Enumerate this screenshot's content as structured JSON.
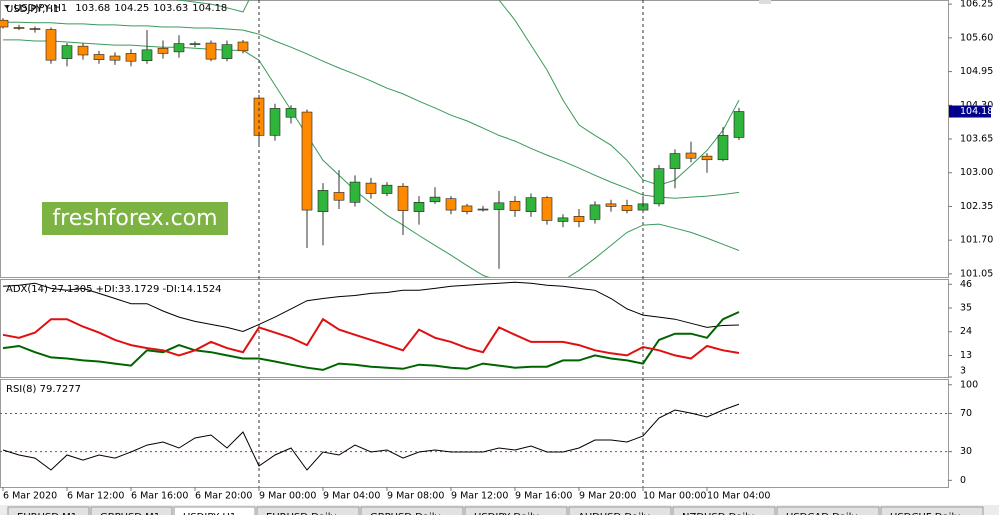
{
  "chart_data": [
    {
      "type": "candlestick",
      "title": "USDJPY,H1",
      "up_color": "#2fb53c",
      "down_color": "#ff8a00",
      "band_color": "#3a9a5a",
      "categories": [
        "6 Mar 2020",
        null,
        null,
        null,
        "6 Mar 12:00",
        null,
        null,
        null,
        "6 Mar 16:00",
        null,
        null,
        null,
        "6 Mar 20:00",
        null,
        null,
        null,
        "9 Mar 00:00",
        null,
        null,
        null,
        "9 Mar 04:00",
        null,
        null,
        null,
        "9 Mar 08:00",
        null,
        null,
        null,
        "9 Mar 12:00",
        null,
        null,
        null,
        "9 Mar 16:00",
        null,
        null,
        null,
        "9 Mar 20:00",
        null,
        null,
        null,
        "10 Mar 00:00",
        null,
        null,
        null,
        "10 Mar 04:00",
        null,
        null
      ],
      "open": [
        105.94,
        105.8,
        105.78,
        105.76,
        105.2,
        105.44,
        105.28,
        105.25,
        105.3,
        105.16,
        105.4,
        105.33,
        105.48,
        105.5,
        105.2,
        105.52,
        104.44,
        103.72,
        104.07,
        104.17,
        102.25,
        102.62,
        102.43,
        102.8,
        102.6,
        102.74,
        102.25,
        102.44,
        102.5,
        102.36,
        102.3,
        102.29,
        102.45,
        102.25,
        102.52,
        102.06,
        102.16,
        102.1,
        102.4,
        102.37,
        102.28,
        102.4,
        103.08,
        103.38,
        103.32,
        103.25,
        103.68
      ],
      "high": [
        105.98,
        105.85,
        105.82,
        105.8,
        105.5,
        105.5,
        105.35,
        105.32,
        105.38,
        105.75,
        105.55,
        105.65,
        105.53,
        105.55,
        105.55,
        105.56,
        104.5,
        104.33,
        104.3,
        104.22,
        102.8,
        103.05,
        102.95,
        102.9,
        102.82,
        102.8,
        102.55,
        102.72,
        102.55,
        102.4,
        102.36,
        102.65,
        102.55,
        102.6,
        102.55,
        102.2,
        102.3,
        102.45,
        102.48,
        102.48,
        102.55,
        103.15,
        103.45,
        103.6,
        103.38,
        103.88,
        104.25
      ],
      "low": [
        105.78,
        105.75,
        105.7,
        105.1,
        105.05,
        105.18,
        105.1,
        105.08,
        105.05,
        105.1,
        105.2,
        105.22,
        105.42,
        105.15,
        105.15,
        105.3,
        103.55,
        103.62,
        103.95,
        101.55,
        101.6,
        102.3,
        102.35,
        102.5,
        102.55,
        101.8,
        102.0,
        102.4,
        102.2,
        102.2,
        102.25,
        101.15,
        102.15,
        102.15,
        102.0,
        101.95,
        101.95,
        102.02,
        102.25,
        102.22,
        102.25,
        102.35,
        102.7,
        103.2,
        103.0,
        103.22,
        103.63
      ],
      "close": [
        105.81,
        105.79,
        105.77,
        105.17,
        105.45,
        105.27,
        105.18,
        105.17,
        105.15,
        105.37,
        105.3,
        105.49,
        105.49,
        105.19,
        105.47,
        105.35,
        103.72,
        104.24,
        104.24,
        102.28,
        102.66,
        102.47,
        102.82,
        102.6,
        102.76,
        102.27,
        102.43,
        102.53,
        102.28,
        102.25,
        102.3,
        102.42,
        102.27,
        102.52,
        102.08,
        102.13,
        102.06,
        102.38,
        102.35,
        102.27,
        102.4,
        103.08,
        103.37,
        103.28,
        103.25,
        103.72,
        104.18
      ],
      "bands": [
        {
          "values": [
            106.56,
            106.54,
            106.52,
            106.5,
            106.48,
            106.47,
            106.45,
            106.43,
            106.41,
            106.39,
            106.37,
            106.33,
            106.29,
            106.25,
            106.18,
            106.1,
            106.72,
            107.1,
            107.49,
            107.87,
            108.07,
            108.16,
            108.16,
            108.07,
            107.97,
            107.87,
            107.68,
            107.49,
            107.3,
            107.1,
            106.72,
            106.33,
            105.94,
            105.46,
            104.98,
            104.4,
            103.92,
            103.72,
            103.53,
            103.24,
            102.86,
            102.76,
            102.86,
            103.14,
            103.43,
            103.82,
            104.4
          ]
        },
        {
          "values": [
            105.9,
            105.9,
            105.89,
            105.89,
            105.87,
            105.87,
            105.85,
            105.85,
            105.83,
            105.83,
            105.81,
            105.81,
            105.79,
            105.79,
            105.77,
            105.75,
            105.67,
            105.54,
            105.42,
            105.29,
            105.15,
            105.02,
            104.9,
            104.77,
            104.63,
            104.52,
            104.38,
            104.25,
            104.11,
            104.0,
            103.86,
            103.72,
            103.61,
            103.47,
            103.34,
            103.22,
            103.09,
            102.95,
            102.82,
            102.7,
            102.57,
            102.53,
            102.51,
            102.53,
            102.55,
            102.58,
            102.62
          ]
        },
        {
          "values": [
            105.56,
            105.56,
            105.54,
            105.54,
            105.52,
            105.5,
            105.48,
            105.46,
            105.46,
            105.44,
            105.42,
            105.42,
            105.4,
            105.38,
            105.36,
            105.36,
            105.17,
            104.69,
            104.21,
            103.72,
            103.24,
            102.95,
            102.66,
            102.41,
            102.18,
            101.99,
            101.79,
            101.6,
            101.41,
            101.21,
            101.02,
            100.92,
            100.85,
            100.81,
            100.83,
            100.92,
            101.12,
            101.35,
            101.6,
            101.85,
            101.99,
            102.01,
            101.93,
            101.85,
            101.74,
            101.62,
            101.5
          ]
        }
      ],
      "ylim": [
        100.99,
        106.33
      ],
      "yticks": [
        106.25,
        {
          "value": 105.6,
          "label": "105.60"
        },
        104.95,
        {
          "value": 104.3,
          "label": "104.30"
        },
        103.65,
        {
          "value": 103.0,
          "label": "103.00"
        },
        102.35,
        {
          "value": 101.7,
          "label": "101.70"
        },
        101.05
      ]
    },
    {
      "type": "line",
      "title": "ADX(14) 27.1305 +DI:33.1729 -DI:14.1524",
      "ylim": [
        3,
        48
      ],
      "yticks": [
        46,
        35,
        24,
        13,
        3
      ],
      "series": [
        {
          "color": "#000000",
          "width": 1,
          "values": [
            45.1,
            45.6,
            46.5,
            44.1,
            43.2,
            44.1,
            41.8,
            39.4,
            37.0,
            37.0,
            33.6,
            30.8,
            28.8,
            27.4,
            26.0,
            24.1,
            27.4,
            30.8,
            34.6,
            38.4,
            39.4,
            40.3,
            40.8,
            41.8,
            42.2,
            43.2,
            43.2,
            44.1,
            45.1,
            45.6,
            46.1,
            46.5,
            47.0,
            46.5,
            45.6,
            45.1,
            44.1,
            43.2,
            39.4,
            34.6,
            31.7,
            30.8,
            29.8,
            27.9,
            26.0,
            26.9,
            27.1305
          ]
        },
        {
          "color": "#006400",
          "width": 2,
          "values": [
            16.4,
            17.4,
            14.5,
            12.1,
            11.6,
            10.7,
            10.2,
            9.2,
            8.3,
            15.4,
            14.5,
            17.8,
            15.4,
            14.5,
            13.0,
            11.6,
            11.6,
            10.2,
            8.7,
            7.3,
            6.3,
            9.2,
            8.7,
            7.8,
            7.3,
            6.8,
            8.7,
            8.3,
            7.3,
            6.8,
            9.2,
            8.3,
            7.3,
            7.8,
            7.8,
            10.7,
            10.7,
            13.0,
            11.6,
            10.7,
            9.2,
            20.2,
            23.1,
            23.1,
            21.2,
            29.8,
            33.1729
          ]
        },
        {
          "color": "#e01010",
          "width": 2,
          "values": [
            22.6,
            21.2,
            23.6,
            29.8,
            29.8,
            26.4,
            23.6,
            20.2,
            17.8,
            16.4,
            15.4,
            13.0,
            15.4,
            19.3,
            16.4,
            14.5,
            26.0,
            23.6,
            21.2,
            17.8,
            29.8,
            25.0,
            22.6,
            20.2,
            17.8,
            15.4,
            25.0,
            21.2,
            19.3,
            16.4,
            14.5,
            26.0,
            22.6,
            19.3,
            19.3,
            19.3,
            17.8,
            15.4,
            14.0,
            13.0,
            16.9,
            15.4,
            13.0,
            11.6,
            17.4,
            15.4,
            14.1524
          ]
        }
      ]
    },
    {
      "type": "line",
      "title": "RSI(8) 79.7277",
      "ylim": [
        -7,
        105
      ],
      "yticks": [
        100,
        70,
        30,
        0
      ],
      "levels": [
        70,
        30
      ],
      "level_color": "#c83232",
      "series": [
        {
          "color": "#000000",
          "width": 1,
          "values": [
            31.7,
            26.5,
            23.3,
            10.8,
            26.5,
            21.2,
            26.5,
            23.3,
            29.6,
            36.9,
            40.1,
            33.8,
            44.3,
            47.4,
            33.8,
            50.6,
            15.0,
            26.5,
            33.8,
            10.8,
            29.6,
            26.5,
            36.9,
            29.6,
            31.7,
            23.3,
            29.6,
            31.7,
            29.6,
            29.6,
            29.6,
            33.8,
            31.7,
            35.9,
            29.6,
            29.6,
            33.8,
            42.2,
            42.2,
            40.1,
            46.4,
            65.2,
            73.6,
            70.4,
            66.3,
            73.6,
            79.7277
          ]
        }
      ]
    }
  ],
  "watermark": "freshforex.com",
  "tabs": [
    "EURUSD,M1",
    "GBPUSD,M1",
    "USDJPY,H1",
    "EURUSD,Daily",
    "GBPUSD,Daily",
    "USDJPY,Daily",
    "AUDUSD,Daily",
    "NZDUSD,Daily",
    "USDCAD,Daily",
    "USDCHF,Daily"
  ]
}
